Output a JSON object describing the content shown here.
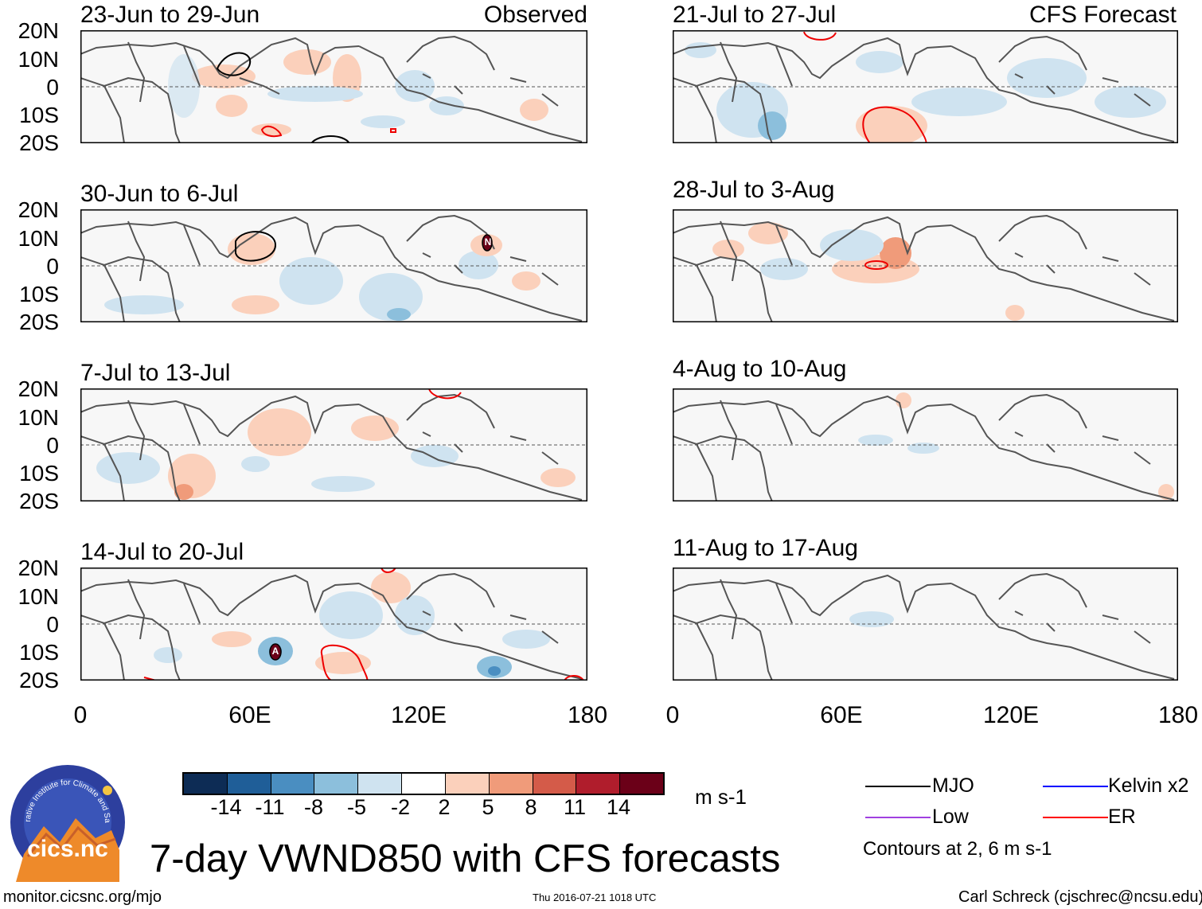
{
  "panels_left": [
    {
      "title": "23-Jun to 29-Jun",
      "corner": "Observed"
    },
    {
      "title": "30-Jun to 6-Jul",
      "corner": ""
    },
    {
      "title": "7-Jul to 13-Jul",
      "corner": ""
    },
    {
      "title": "14-Jul to 20-Jul",
      "corner": ""
    }
  ],
  "panels_right": [
    {
      "title": "21-Jul to 27-Jul",
      "corner": "CFS Forecast"
    },
    {
      "title": "28-Jul to 3-Aug",
      "corner": ""
    },
    {
      "title": "4-Aug to 10-Aug",
      "corner": ""
    },
    {
      "title": "11-Aug to 17-Aug",
      "corner": ""
    }
  ],
  "lat_labels": [
    "20N",
    "10N",
    "0",
    "10S",
    "20S"
  ],
  "lon_labels": [
    "0",
    "60E",
    "120E",
    "180"
  ],
  "markers": {
    "n_marker": "N",
    "a_marker": "A"
  },
  "colorbar": {
    "labels": [
      "-14",
      "-11",
      "-8",
      "-5",
      "-2",
      "2",
      "5",
      "8",
      "11",
      "14"
    ],
    "colors": [
      "#0d2c55",
      "#1f5e98",
      "#4a8ec1",
      "#8cbfdc",
      "#cfe3f0",
      "#ffffff",
      "#fbd0bb",
      "#f09b7a",
      "#d45b49",
      "#b01d2c",
      "#6b0018"
    ],
    "units": "m s-1"
  },
  "legend": {
    "items": [
      {
        "label": "MJO",
        "color": "#000000"
      },
      {
        "label": "Kelvin x2",
        "color": "#0000ff"
      },
      {
        "label": "Low",
        "color": "#a040e0"
      },
      {
        "label": "ER",
        "color": "#ff0000"
      }
    ],
    "note": "Contours at 2, 6 m s-1"
  },
  "title": "7-day VWND850 with CFS forecasts",
  "logo_text": "cics.nc",
  "logo_ring_text": "Cooperative Institute for Climate and Satellites",
  "footer": {
    "url": "monitor.cicsnc.org/mjo",
    "timestamp": "Thu 2016-07-21 1018 UTC",
    "author": "Carl Schreck (cjschrec@ncsu.edu)"
  }
}
